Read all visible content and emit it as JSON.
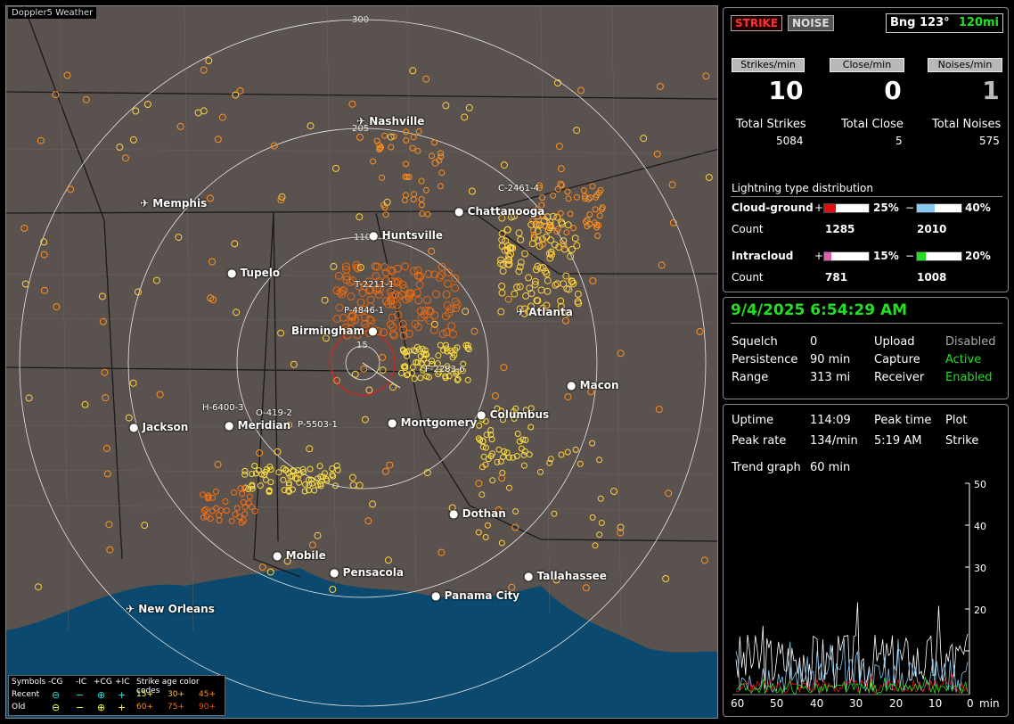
{
  "app_title": "Doppler5 Weather",
  "top": {
    "strike_btn": "STRIKE",
    "noise_btn": "NOISE",
    "bearing": "Bng 123°",
    "range": "120mi"
  },
  "counts": {
    "strikes_label": "Strikes/min",
    "close_label": "Close/min",
    "noises_label": "Noises/min",
    "strikes": "10",
    "close": "0",
    "noises": "1",
    "total_strikes_label": "Total Strikes",
    "total_close_label": "Total Close",
    "total_noises_label": "Total Noises",
    "total_strikes": "5084",
    "total_close": "5",
    "total_noises": "575"
  },
  "distribution": {
    "title": "Lightning type distribution",
    "cg_label": "Cloud-ground",
    "ic_label": "Intracloud",
    "count_label": "Count",
    "plus": "+",
    "minus": "−",
    "cg_plus_pct": "25%",
    "cg_minus_pct": "40%",
    "cg_plus_count": "1285",
    "cg_minus_count": "2010",
    "ic_plus_pct": "15%",
    "ic_minus_pct": "20%",
    "ic_plus_count": "781",
    "ic_minus_count": "1008",
    "cg_plus_frac": 0.25,
    "cg_minus_frac": 0.4,
    "ic_plus_frac": 0.15,
    "ic_minus_frac": 0.2,
    "colors": {
      "cg_plus": "#e01010",
      "cg_minus": "#88c8f0",
      "ic_plus": "#e060b0",
      "ic_minus": "#20e020"
    }
  },
  "status": {
    "datetime": "9/4/2025 6:54:29 AM",
    "squelch_label": "Squelch",
    "squelch": "0",
    "persistence_label": "Persistence",
    "persistence": "90 min",
    "range_label": "Range",
    "range": "313 mi",
    "upload_label": "Upload",
    "upload": "Disabled",
    "capture_label": "Capture",
    "capture": "Active",
    "receiver_label": "Receiver",
    "receiver": "Enabled"
  },
  "stats": {
    "uptime_label": "Uptime",
    "uptime": "114:09",
    "peak_time_label": "Peak time",
    "peak_time": "5:19 AM",
    "plot_label": "Plot",
    "plot": "Strike",
    "peak_rate_label": "Peak rate",
    "peak_rate": "134/min",
    "trend_label": "Trend graph",
    "trend": "60 min",
    "y_ticks": [
      "50",
      "40",
      "30",
      "20"
    ],
    "x_ticks": [
      "60",
      "50",
      "40",
      "30",
      "20",
      "10",
      "0"
    ],
    "x_unit": "min"
  },
  "map": {
    "cities": [
      "Nashville",
      "Memphis",
      "Chattanooga",
      "Huntsville",
      "Tupelo",
      "Atlanta",
      "Birmingham",
      "Macon",
      "Jackson",
      "Meridian",
      "Montgomery",
      "Columbus",
      "Dothan",
      "Mobile",
      "Pensacola",
      "Tallahassee",
      "Panama City",
      "New Orleans"
    ],
    "rings": [
      "300",
      "205",
      "110",
      "15"
    ],
    "sensors": [
      "C-2461-4",
      "T-2211-1",
      "P-4846-1",
      "F-2283-6",
      "H-6400-3",
      "O-419-2",
      "P-5503-1"
    ]
  },
  "legend": {
    "symbols": "Symbols",
    "neg_cg": "-CG",
    "neg_ic": "-IC",
    "pos_cg": "+CG",
    "pos_ic": "+IC",
    "age_title": "Strike age color codes",
    "recent": "Recent",
    "old": "Old",
    "r1": "15+",
    "r2": "30+",
    "r3": "45+",
    "o1": "60+",
    "o2": "75+",
    "o3": "90+"
  }
}
